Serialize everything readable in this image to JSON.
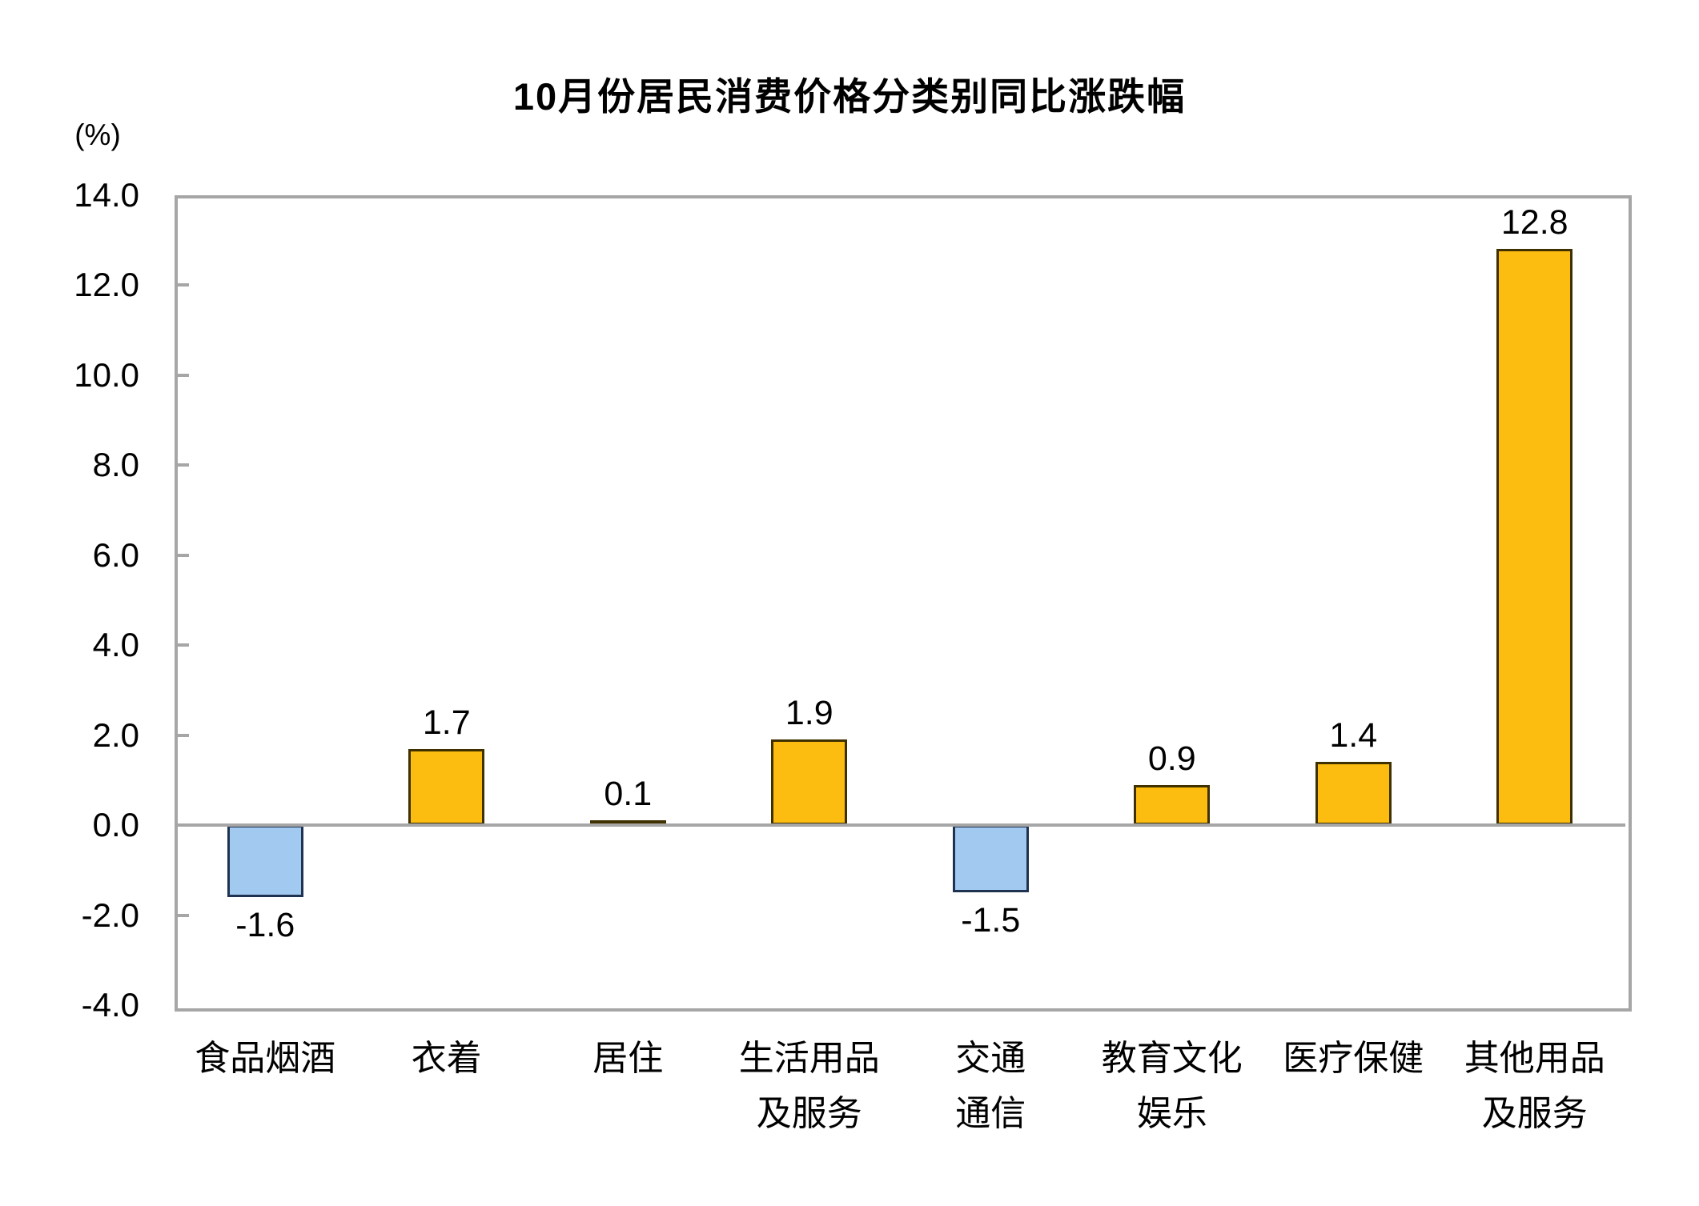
{
  "chart_data": {
    "type": "bar",
    "title": "10月份居民消费价格分类别同比涨跌幅",
    "unit_label": "(%)",
    "categories": [
      "食品烟酒",
      "衣着",
      "居住",
      "生活用品\n及服务",
      "交通\n通信",
      "教育文化\n娱乐",
      "医疗保健",
      "其他用品\n及服务"
    ],
    "values": [
      -1.6,
      1.7,
      0.1,
      1.9,
      -1.5,
      0.9,
      1.4,
      12.8
    ],
    "value_labels": [
      "-1.6",
      "1.7",
      "0.1",
      "1.9",
      "-1.5",
      "0.9",
      "1.4",
      "12.8"
    ],
    "xlabel": "",
    "ylabel": "(%)",
    "ylim": [
      -4.0,
      14.0
    ],
    "ytick_step": 2.0,
    "yticks": [
      14,
      12,
      10,
      8,
      6,
      4,
      2,
      0,
      -2,
      -4
    ],
    "ytick_labels": [
      "14.0",
      "12.0",
      "10.0",
      "8.0",
      "6.0",
      "4.0",
      "2.0",
      "0.0",
      "-2.0",
      "-4.0"
    ],
    "grid": false,
    "legend": "none",
    "zero_line": true,
    "colors": {
      "positive_fill": "#fcbd10",
      "positive_border": "#3f3000",
      "negative_fill": "#a2caf1",
      "negative_border": "#1f3250",
      "axis": "#a6a6a6",
      "text": "#000000"
    }
  }
}
